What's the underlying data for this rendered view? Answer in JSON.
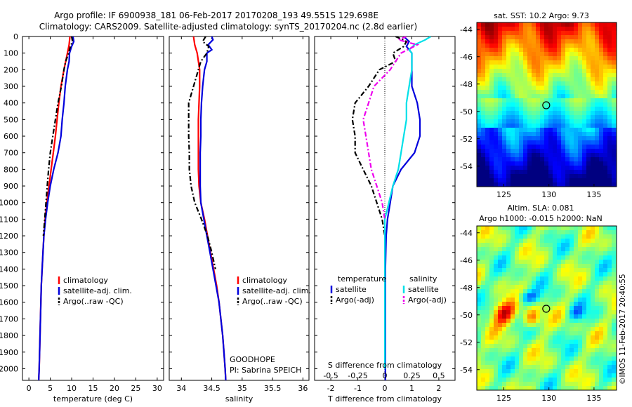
{
  "titles": {
    "line1": "Argo profile: IF 6900938_181 06-Feb-2017 20170208_193 49.551S 129.698E",
    "line2": "Climatology: CARS2009. Satellite-adjusted climatology: synTS_20170204.nc (2.8d earlier)"
  },
  "depth_axis": {
    "ticks": [
      0,
      100,
      200,
      300,
      400,
      500,
      600,
      700,
      800,
      900,
      1000,
      1100,
      1200,
      1300,
      1400,
      1500,
      1600,
      1700,
      1800,
      1900,
      2000
    ],
    "ylim": [
      0,
      2070
    ]
  },
  "colors": {
    "climatology": "#ff0000",
    "satellite": "#0000dd",
    "argo": "#000000",
    "sat_salinity": "#00dddd",
    "argo_salinity": "#dd00dd"
  },
  "chart_data": [
    {
      "type": "line",
      "id": "temperature",
      "xlabel": "temperature (deg C)",
      "xlim": [
        -1.5,
        31.5
      ],
      "xticks": [
        0,
        5,
        10,
        15,
        20,
        25,
        30
      ],
      "legend": [
        "climatology",
        "satellite-adj. clim.",
        "Argo(..raw -QC)"
      ],
      "series": [
        {
          "name": "climatology",
          "color": "red",
          "style": "solid",
          "depth": [
            0,
            50,
            100,
            200,
            300,
            400,
            500,
            600,
            700,
            800,
            900,
            1000,
            1100,
            1200,
            1300,
            1400,
            1500,
            1600,
            1700,
            1800,
            1900,
            2000,
            2070
          ],
          "values": [
            9.6,
            9.4,
            9.0,
            8.2,
            7.5,
            7.0,
            6.6,
            6.2,
            5.7,
            5.2,
            4.7,
            4.2,
            3.8,
            3.5,
            3.3,
            3.1,
            2.9,
            2.8,
            2.7,
            2.6,
            2.5,
            2.4,
            2.3
          ]
        },
        {
          "name": "satellite-adj. clim.",
          "color": "blue",
          "style": "solid",
          "depth": [
            0,
            30,
            60,
            100,
            150,
            200,
            300,
            400,
            500,
            600,
            700,
            800,
            900,
            1000,
            1100,
            1200,
            1300,
            1400,
            1500,
            1600,
            1700,
            1800,
            1900,
            2000,
            2070
          ],
          "values": [
            10.3,
            10.5,
            10.0,
            9.5,
            9.4,
            9.0,
            8.5,
            8.2,
            7.8,
            7.5,
            6.8,
            5.8,
            5.0,
            4.4,
            3.9,
            3.5,
            3.3,
            3.1,
            2.9,
            2.8,
            2.7,
            2.6,
            2.5,
            2.4,
            2.3
          ]
        },
        {
          "name": "Argo(..raw -QC)",
          "color": "black",
          "style": "dashed",
          "depth": [
            0,
            30,
            60,
            100,
            150,
            200,
            300,
            400,
            500,
            600,
            700,
            800,
            900,
            1000,
            1100,
            1200
          ],
          "values": [
            10.0,
            10.2,
            9.7,
            9.3,
            8.6,
            8.2,
            7.6,
            6.8,
            6.2,
            5.6,
            5.0,
            4.6,
            4.3,
            4.0,
            3.7,
            3.4
          ]
        }
      ]
    },
    {
      "type": "line",
      "id": "salinity",
      "xlabel": "salinity",
      "xlim": [
        33.8,
        36.1
      ],
      "xticks": [
        34,
        34.5,
        35,
        35.5,
        36
      ],
      "legend": [
        "climatology",
        "satellite-adj. clim.",
        "Argo(..raw -QC)"
      ],
      "annotation": [
        "GOODHOPE",
        "PI: Sabrina SPEICH"
      ],
      "series": [
        {
          "name": "climatology",
          "color": "red",
          "style": "solid",
          "depth": [
            0,
            50,
            100,
            200,
            300,
            400,
            500,
            600,
            700,
            800,
            900,
            1000,
            1100,
            1200,
            1300,
            1400,
            1500,
            1600,
            1700,
            1800,
            1900,
            2000,
            2070
          ],
          "values": [
            34.2,
            34.22,
            34.26,
            34.3,
            34.3,
            34.29,
            34.28,
            34.28,
            34.28,
            34.28,
            34.29,
            34.32,
            34.38,
            34.43,
            34.48,
            34.53,
            34.58,
            34.62,
            34.65,
            34.68,
            34.7,
            34.72,
            34.73
          ]
        },
        {
          "name": "satellite-adj. clim.",
          "color": "blue",
          "style": "solid",
          "depth": [
            0,
            20,
            50,
            80,
            100,
            150,
            200,
            300,
            400,
            500,
            600,
            700,
            800,
            900,
            1000,
            1100,
            1200,
            1300,
            1400,
            1500,
            1600,
            1700,
            1800,
            1900,
            2000,
            2070
          ],
          "values": [
            34.5,
            34.52,
            34.44,
            34.5,
            34.42,
            34.42,
            34.38,
            34.35,
            34.33,
            34.32,
            34.32,
            34.31,
            34.31,
            34.31,
            34.32,
            34.37,
            34.42,
            34.47,
            34.52,
            34.57,
            34.62,
            34.65,
            34.68,
            34.7,
            34.72,
            34.73
          ]
        },
        {
          "name": "Argo(..raw -QC)",
          "color": "black",
          "style": "dashed",
          "depth": [
            0,
            30,
            60,
            100,
            150,
            200,
            300,
            400,
            500,
            600,
            700,
            800,
            900,
            1000,
            1100,
            1200,
            1300,
            1400
          ],
          "values": [
            34.4,
            34.35,
            34.45,
            34.42,
            34.32,
            34.28,
            34.2,
            34.12,
            34.12,
            34.12,
            34.13,
            34.13,
            34.16,
            34.22,
            34.33,
            34.43,
            34.5,
            34.56
          ]
        }
      ]
    },
    {
      "type": "line",
      "id": "difference",
      "xlabel": "T difference from climatology",
      "xlabel_top": "S difference from climatology",
      "xlim": [
        -2.6,
        2.6
      ],
      "xticks": [
        -2,
        -1,
        0,
        1,
        2
      ],
      "top_ticks": [
        -0.5,
        -0.25,
        0,
        0.25,
        0.5
      ],
      "legend_titles": [
        "temperature",
        "salinity"
      ],
      "legend": [
        "satellite",
        "Argo(-adj)",
        "satellite",
        "Argo(-adj)"
      ],
      "series": [
        {
          "name": "temperature satellite",
          "color": "blue",
          "style": "solid",
          "depth": [
            0,
            30,
            60,
            100,
            200,
            300,
            400,
            500,
            600,
            700,
            800,
            900,
            1000,
            1100,
            1200,
            1400,
            1600,
            1800,
            2000,
            2070
          ],
          "values": [
            0.7,
            0.9,
            0.8,
            1.0,
            1.0,
            1.0,
            1.2,
            1.3,
            1.3,
            1.1,
            0.6,
            0.3,
            0.2,
            0.1,
            0.05,
            0.02,
            0.02,
            0.02,
            0.02,
            0.02
          ]
        },
        {
          "name": "temperature Argo(-adj)",
          "color": "black",
          "style": "dashed",
          "depth": [
            0,
            30,
            60,
            100,
            150,
            200,
            300,
            400,
            500,
            600,
            700,
            800,
            900,
            1000,
            1100,
            1200
          ],
          "values": [
            0.4,
            0.8,
            0.7,
            0.3,
            0.4,
            -0.2,
            -0.6,
            -1.1,
            -1.2,
            -1.1,
            -1.1,
            -0.8,
            -0.5,
            -0.3,
            -0.1,
            0.0
          ]
        },
        {
          "name": "salinity satellite",
          "color": "cyan",
          "style": "solid",
          "depth": [
            0,
            20,
            50,
            80,
            100,
            200,
            300,
            400,
            500,
            600,
            700,
            800,
            900,
            1000,
            1100,
            1200,
            1400,
            1600,
            1800,
            2000
          ],
          "values": [
            1.7,
            1.5,
            1.1,
            0.9,
            1.0,
            1.0,
            0.9,
            0.8,
            0.8,
            0.7,
            0.6,
            0.5,
            0.3,
            0.15,
            0.0,
            0.0,
            0.0,
            0.0,
            0.0,
            0.0
          ]
        },
        {
          "name": "salinity Argo(-adj)",
          "color": "magenta",
          "style": "dashed",
          "depth": [
            0,
            20,
            50,
            100,
            200,
            300,
            400,
            500,
            600,
            700,
            800,
            900,
            1000,
            1100
          ],
          "values": [
            0.8,
            0.5,
            1.2,
            0.6,
            0.2,
            -0.4,
            -0.6,
            -0.8,
            -0.7,
            -0.6,
            -0.5,
            -0.3,
            -0.1,
            0.0
          ]
        }
      ]
    },
    {
      "type": "heatmap",
      "id": "sst_map",
      "title": "sat. SST: 10.2 Argo: 9.73",
      "xlim": [
        122,
        137.5
      ],
      "ylim": [
        -55.5,
        -43.5
      ],
      "xticks": [
        125,
        130,
        135
      ],
      "yticks": [
        -44,
        -46,
        -48,
        -50,
        -52,
        -54
      ],
      "marker": {
        "lon": 129.698,
        "lat": -49.551
      }
    },
    {
      "type": "heatmap",
      "id": "sla_map",
      "title": "Altim. SLA: 0.081",
      "subtitle": "Argo h1000: -0.015 h2000: NaN",
      "xlim": [
        122,
        137.5
      ],
      "ylim": [
        -55.5,
        -43.5
      ],
      "xticks": [
        125,
        130,
        135
      ],
      "yticks": [
        -44,
        -46,
        -48,
        -50,
        -52,
        -54
      ],
      "marker": {
        "lon": 129.698,
        "lat": -49.551
      }
    }
  ],
  "credit": "©IMOS 11-Feb-2017 20:40:55"
}
